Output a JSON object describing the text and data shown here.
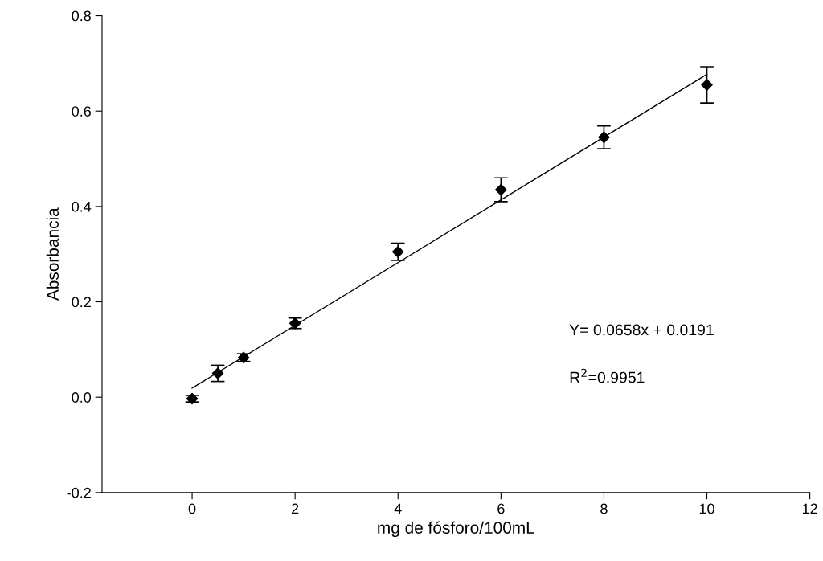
{
  "chart_data": {
    "type": "scatter",
    "xlabel": "mg de fósforo/100mL",
    "ylabel": "Absorbancia",
    "series": [
      {
        "color": "#000000",
        "x": [
          0,
          0.5,
          1,
          2,
          4,
          6,
          8,
          10
        ],
        "values": [
          -0.003,
          0.05,
          0.083,
          0.155,
          0.305,
          0.435,
          0.545,
          0.655
        ],
        "errors": [
          0.007,
          0.017,
          0.008,
          0.011,
          0.018,
          0.025,
          0.024,
          0.038
        ],
        "marker": "diamond"
      },
      {
        "type": "line",
        "color": "#000000",
        "x": [
          0,
          10
        ],
        "values": [
          0.019,
          0.677
        ],
        "line_style": "solid"
      }
    ],
    "annotations": [
      "Y= 0.0658x + 0.0191",
      "R$^{2}$=0.9951"
    ],
    "xlim": [
      -1.75,
      12
    ],
    "xticks": [
      0,
      2,
      4,
      6,
      8,
      10,
      12
    ],
    "ylim": [
      -0.2,
      0.8
    ],
    "yticks": [
      {
        "value": -0.2,
        "label": "-0.2"
      },
      {
        "value": 0,
        "label": "0.0"
      },
      {
        "value": 0.2,
        "label": "0.2"
      },
      {
        "value": 0.4,
        "label": "0.4"
      },
      {
        "value": 0.6,
        "label": "0.6"
      },
      {
        "value": 0.8,
        "label": "0.8"
      }
    ],
    "grid": false,
    "legend": false
  }
}
